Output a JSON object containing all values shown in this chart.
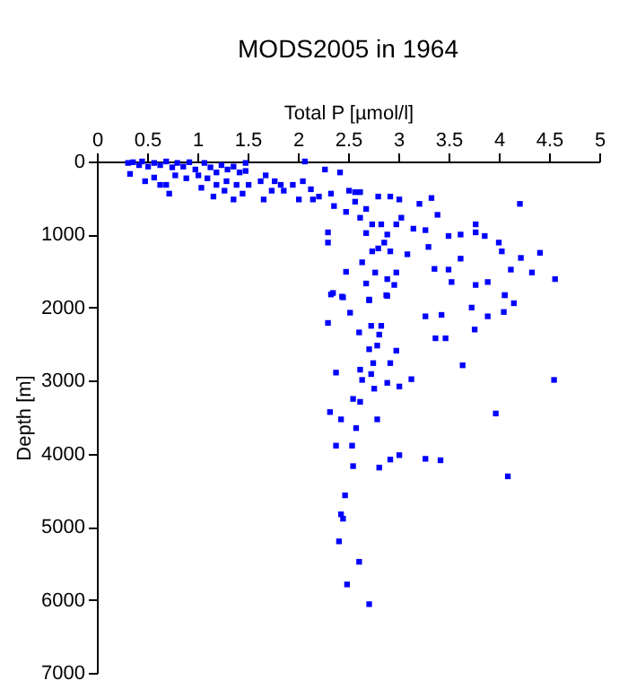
{
  "chart_data": {
    "type": "scatter",
    "title": "MODS2005 in 1964",
    "xlabel": "Total P [µmol/l]",
    "ylabel": "Depth [m]",
    "xlim": [
      0,
      5
    ],
    "xticks": [
      0,
      0.5,
      1,
      1.5,
      2,
      2.5,
      3,
      3.5,
      4,
      4.5,
      5
    ],
    "ylim": [
      7000,
      0
    ],
    "yticks": [
      0,
      1000,
      2000,
      3000,
      4000,
      5000,
      6000,
      7000
    ],
    "grid": false,
    "legend": false,
    "marker": "square",
    "series": [
      {
        "color": "#0000ff",
        "x": [
          0.31,
          0.36,
          0.42,
          0.45,
          0.51,
          0.57,
          0.63,
          0.69,
          0.75,
          0.8,
          0.86,
          0.92,
          0.98,
          0.33,
          0.48,
          0.57,
          0.69,
          0.78,
          0.89,
          1.01,
          1.07,
          1.13,
          1.19,
          1.24,
          1.3,
          1.36,
          1.42,
          1.48,
          1.48,
          1.04,
          1.16,
          1.27,
          1.36,
          1.45,
          1.19,
          0.72,
          0.63,
          1.1,
          1.29,
          1.39,
          1.51,
          1.63,
          1.68,
          1.77,
          1.83,
          1.95,
          2.07,
          2.05,
          2.13,
          1.66,
          1.74,
          1.86,
          2.01,
          2.15,
          2.21,
          2.33,
          2.27,
          2.42,
          2.57,
          2.62,
          2.51,
          2.36,
          2.48,
          2.57,
          2.68,
          2.8,
          2.92,
          3.01,
          3.33,
          3.39,
          3.21,
          3.27,
          2.74,
          2.83,
          2.89,
          2.98,
          3.15,
          3.03,
          2.3,
          2.3,
          2.68,
          2.74,
          2.8,
          2.92,
          2.86,
          3.09,
          3.3,
          3.36,
          3.62,
          3.5,
          3.77,
          3.77,
          3.86,
          4.0,
          4.03,
          4.21,
          4.22,
          4.33,
          4.41,
          4.56,
          4.12,
          3.89,
          3.77,
          3.53,
          2.98,
          2.89,
          2.77,
          2.64,
          2.48,
          2.62,
          2.68,
          2.96,
          4.06,
          2.33,
          2.45,
          2.71,
          2.89,
          3.62,
          3.5,
          2.35,
          2.44,
          2.71,
          2.88,
          4.06,
          4.15,
          4.05,
          3.89,
          3.73,
          2.52,
          2.3,
          2.73,
          2.83,
          2.61,
          2.81,
          3.27,
          3.43,
          3.76,
          3.37,
          3.47,
          2.79,
          2.71,
          2.98,
          2.75,
          2.92,
          3.64,
          2.38,
          2.62,
          2.64,
          2.73,
          2.89,
          3.01,
          2.76,
          3.13,
          4.55,
          2.55,
          2.62,
          2.32,
          2.43,
          2.58,
          2.79,
          3.97,
          2.38,
          2.54,
          2.55,
          2.81,
          2.92,
          3.01,
          3.27,
          3.42,
          4.09,
          2.47,
          2.43,
          2.45,
          2.41,
          2.61,
          2.49,
          2.71
        ],
        "values": [
          20,
          10,
          50,
          0,
          70,
          20,
          50,
          0,
          80,
          20,
          70,
          10,
          110,
          170,
          270,
          220,
          320,
          190,
          230,
          190,
          20,
          80,
          150,
          50,
          110,
          70,
          150,
          20,
          130,
          360,
          480,
          400,
          520,
          440,
          320,
          440,
          320,
          230,
          270,
          320,
          320,
          270,
          190,
          270,
          320,
          320,
          0,
          270,
          380,
          520,
          400,
          400,
          520,
          520,
          480,
          440,
          110,
          150,
          420,
          420,
          400,
          610,
          690,
          550,
          650,
          480,
          480,
          520,
          500,
          730,
          580,
          940,
          860,
          860,
          1000,
          860,
          920,
          770,
          970,
          1110,
          980,
          1230,
          1190,
          1230,
          1110,
          1270,
          1170,
          1470,
          1000,
          1020,
          860,
          970,
          1020,
          1110,
          1230,
          580,
          1320,
          1520,
          1250,
          1610,
          1480,
          1650,
          1690,
          1650,
          1520,
          1610,
          1520,
          1380,
          1510,
          770,
          1670,
          1690,
          1830,
          1820,
          1860,
          1900,
          1840,
          1330,
          1480,
          1800,
          1850,
          1890,
          1830,
          1830,
          1940,
          2060,
          2120,
          2000,
          2070,
          2210,
          2250,
          2250,
          2340,
          2370,
          2120,
          2100,
          2300,
          2420,
          2420,
          2520,
          2570,
          2590,
          2760,
          2760,
          2790,
          2890,
          2850,
          2990,
          2910,
          3030,
          3080,
          3110,
          2980,
          2990,
          3250,
          3290,
          3430,
          3530,
          3650,
          3530,
          3450,
          3890,
          3890,
          4170,
          4190,
          4080,
          4020,
          4070,
          4090,
          4310,
          4570,
          4830,
          4890,
          5200,
          5480,
          5790,
          6060
        ]
      }
    ]
  }
}
